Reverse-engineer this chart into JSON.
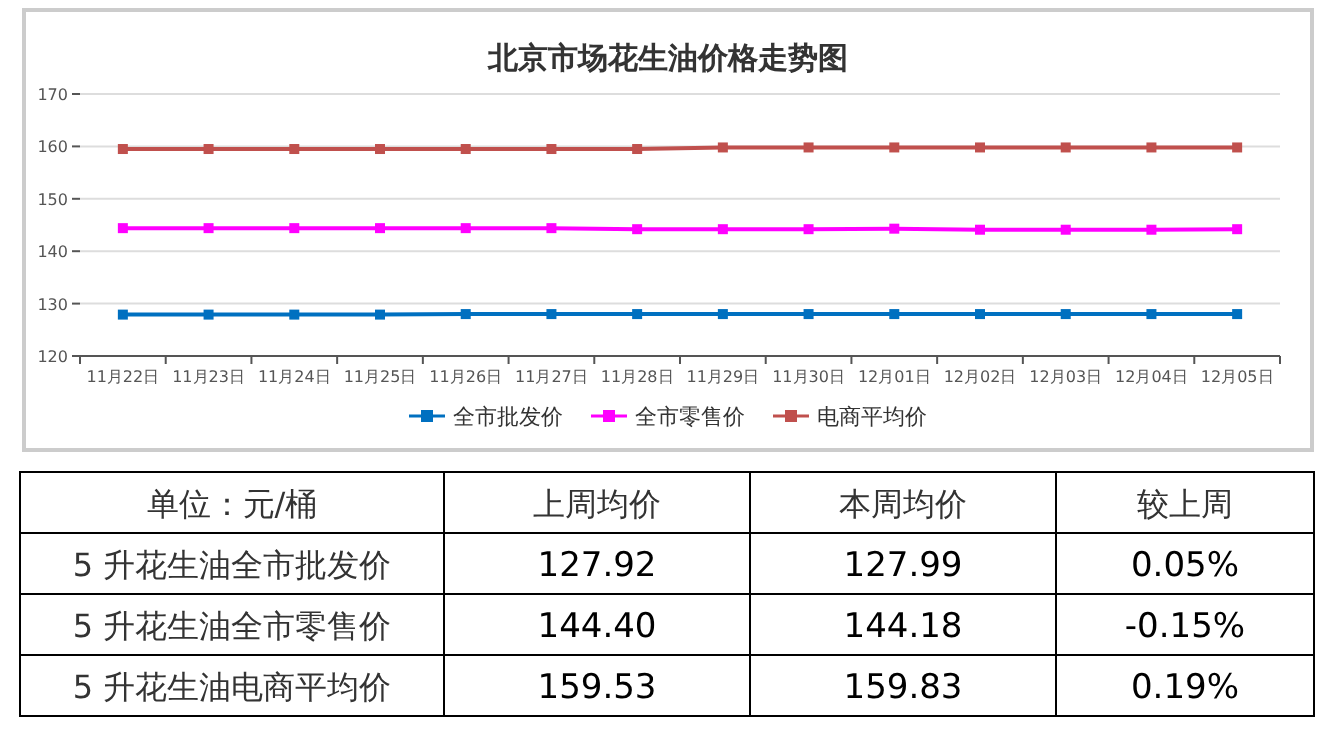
{
  "chart_data": {
    "type": "line",
    "title": "北京市场花生油价格走势图",
    "categories": [
      "11月22日",
      "11月23日",
      "11月24日",
      "11月25日",
      "11月26日",
      "11月27日",
      "11月28日",
      "11月29日",
      "11月30日",
      "12月01日",
      "12月02日",
      "12月03日",
      "12月04日",
      "12月05日"
    ],
    "series": [
      {
        "name": "全市批发价",
        "color": "#0070c0",
        "values": [
          127.9,
          127.9,
          127.9,
          127.9,
          128.0,
          128.0,
          128.0,
          128.0,
          128.0,
          128.0,
          128.0,
          128.0,
          128.0,
          128.0
        ]
      },
      {
        "name": "全市零售价",
        "color": "#ff00ff",
        "values": [
          144.4,
          144.4,
          144.4,
          144.4,
          144.4,
          144.4,
          144.2,
          144.2,
          144.2,
          144.3,
          144.1,
          144.1,
          144.1,
          144.2
        ]
      },
      {
        "name": "电商平均价",
        "color": "#c0504d",
        "values": [
          159.5,
          159.5,
          159.5,
          159.5,
          159.5,
          159.5,
          159.5,
          159.8,
          159.8,
          159.8,
          159.8,
          159.8,
          159.8,
          159.8
        ]
      }
    ],
    "ylim": [
      120,
      170
    ],
    "yticks": [
      120,
      130,
      140,
      150,
      160,
      170
    ],
    "grid": "y",
    "legend": "bottom",
    "marker": "square",
    "line_style": "solid",
    "annotations": [
      "单位：元/桶",
      "上周均价",
      "本周均价",
      "较上周",
      "5 升花生油全市批发价",
      "127.92",
      "127.99",
      "0.05%",
      "5 升花生油全市零售价",
      "144.40",
      "144.18",
      "-0.15%",
      "5 升花生油电商平均价",
      "159.53",
      "159.83",
      "0.19%"
    ]
  }
}
